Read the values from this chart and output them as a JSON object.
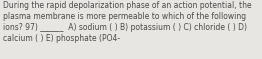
{
  "text": "During the rapid depolarization phase of an action potential, the\nplasma membrane is more permeable to which of the following\nions? 97) ______  A) sodium ( ) B) potassium ( ) C) chloride ( ) D)\ncalcium ( ) E) phosphate (PO4-",
  "bg_color": "#e8e6e2",
  "text_color": "#4a4a4a",
  "fontsize": 5.5,
  "fig_width": 2.62,
  "fig_height": 0.59,
  "dpi": 100
}
